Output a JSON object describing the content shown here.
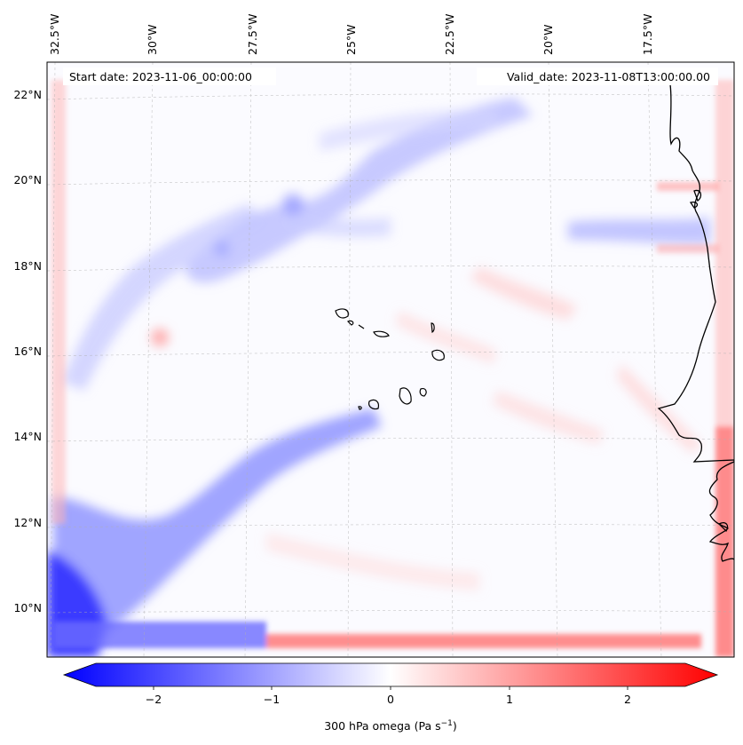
{
  "map": {
    "header": {
      "start_date": "Start date: 2023-11-06_00:00:00",
      "valid_date": "Valid_date: 2023-11-08T13:00:00.00"
    },
    "lon_labels": [
      "32.5°W",
      "30°W",
      "27.5°W",
      "25°W",
      "22.5°W",
      "20°W",
      "17.5°W"
    ],
    "lat_labels": [
      "22°N",
      "20°N",
      "18°N",
      "16°N",
      "14°N",
      "12°N",
      "10°N"
    ],
    "field": "300 hPa omega",
    "colors": {
      "negative": "#0000ff",
      "zero": "#ffffff",
      "positive": "#ff0000",
      "coast": "#000000"
    }
  },
  "colorbar": {
    "label": "300 hPa omega (Pa s",
    "label_sup": "−1",
    "label_end": ")",
    "ticks": [
      "−2",
      "−1",
      "0",
      "1",
      "2"
    ],
    "tick_values": [
      -2,
      -1,
      0,
      1,
      2
    ],
    "vmin": -2.5,
    "vmax": 2.5
  }
}
